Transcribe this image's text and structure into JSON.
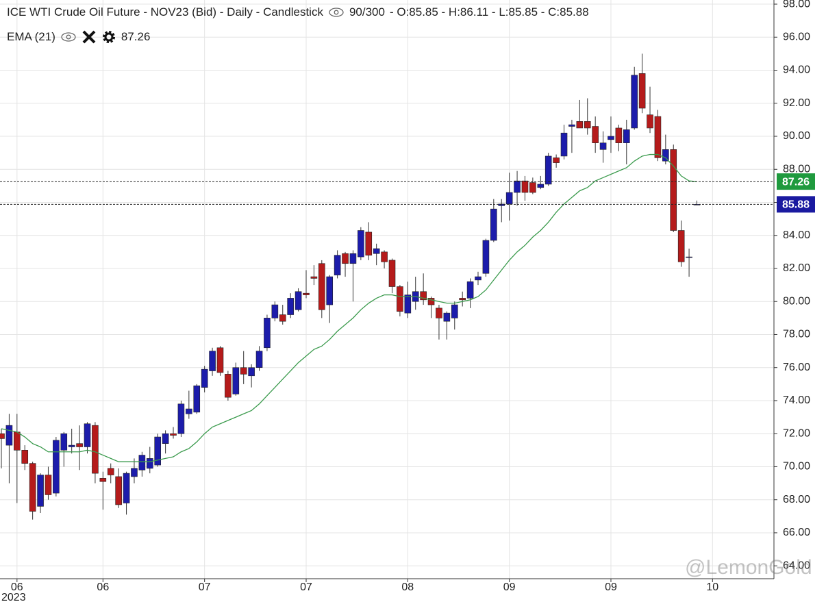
{
  "chart_data": {
    "type": "candlestick",
    "title": "ICE WTI Crude Oil Future - NOV23 (Bid) - Daily - Candlestick",
    "bar_count": "90/300",
    "ohlc_readout": "- O:85.85 - H:86.11 - L:85.85 - C:85.88",
    "year_label": "2023",
    "watermark": "@LemonGold",
    "categories": [
      null,
      null,
      "06",
      null,
      null,
      null,
      null,
      null,
      null,
      null,
      null,
      null,
      null,
      "06",
      null,
      null,
      null,
      null,
      null,
      null,
      null,
      null,
      null,
      null,
      null,
      null,
      "07",
      null,
      null,
      null,
      null,
      null,
      null,
      null,
      null,
      null,
      null,
      null,
      null,
      "07",
      null,
      null,
      null,
      null,
      null,
      null,
      null,
      null,
      null,
      null,
      null,
      null,
      "08",
      null,
      null,
      null,
      null,
      null,
      null,
      null,
      null,
      null,
      null,
      null,
      null,
      "09",
      null,
      null,
      null,
      null,
      null,
      null,
      null,
      null,
      null,
      null,
      null,
      null,
      "09",
      null,
      null,
      null,
      null,
      null,
      null,
      null,
      null,
      null,
      null,
      null,
      null,
      "10"
    ],
    "series": [
      {
        "name": "ICE WTI Crude Oil Future - NOV23 (Bid)",
        "up_color": "#1c1cab",
        "down_color": "#b51b1b",
        "open": [
          72.0,
          71.3,
          72.1,
          71.0,
          70.2,
          67.6,
          69.5,
          68.4,
          71.0,
          71.2,
          71.4,
          71.2,
          72.5,
          69.3,
          69.9,
          69.4,
          67.8,
          69.4,
          69.8,
          69.9,
          70.1,
          71.4,
          72.0,
          72.0,
          73.2,
          73.3,
          74.8,
          75.8,
          77.2,
          75.6,
          74.4,
          76.0,
          75.5,
          76.0,
          77.2,
          79.0,
          79.2,
          79.2,
          79.5,
          80.5,
          81.5,
          82.3,
          79.8,
          81.6,
          82.9,
          82.3,
          82.7,
          84.2,
          82.9,
          83.0,
          82.5,
          80.9,
          79.3,
          80.0,
          80.6,
          80.2,
          79.6,
          78.8,
          79.0,
          80.2,
          80.2,
          81.3,
          81.7,
          83.7,
          85.8,
          85.9,
          86.6,
          87.3,
          87.2,
          86.9,
          87.1,
          88.7,
          88.8,
          90.6,
          90.9,
          90.9,
          90.6,
          89.2,
          89.8,
          90.5,
          89.6,
          90.5,
          93.8,
          91.3,
          91.2,
          88.5,
          89.2,
          84.3,
          82.7,
          85.85,
          null,
          null
        ],
        "high": [
          72.3,
          73.2,
          73.2,
          71.3,
          70.3,
          69.6,
          70.0,
          71.8,
          72.1,
          72.3,
          72.5,
          72.7,
          72.7,
          69.7,
          70.2,
          69.9,
          69.7,
          70.5,
          70.9,
          71.2,
          72.0,
          72.2,
          72.4,
          74.0,
          74.6,
          75.0,
          76.1,
          77.2,
          77.3,
          75.8,
          76.3,
          77.0,
          76.2,
          77.3,
          79.2,
          80.0,
          79.8,
          80.5,
          80.8,
          81.9,
          82.2,
          82.5,
          81.6,
          83.1,
          83.0,
          83.1,
          84.5,
          84.8,
          83.5,
          83.1,
          82.6,
          81.0,
          81.2,
          81.5,
          81.7,
          80.3,
          79.8,
          79.4,
          80.0,
          80.6,
          81.4,
          81.8,
          83.8,
          86.2,
          86.2,
          87.8,
          87.9,
          87.6,
          87.5,
          87.6,
          89.0,
          88.9,
          90.7,
          91.0,
          92.2,
          92.3,
          91.2,
          90.3,
          91.2,
          90.7,
          91.0,
          94.2,
          95.0,
          93.0,
          91.6,
          90.1,
          89.5,
          84.9,
          83.2,
          86.11,
          null,
          null
        ],
        "low": [
          69.9,
          69.0,
          67.8,
          69.8,
          66.8,
          67.2,
          68.0,
          68.2,
          70.0,
          70.8,
          69.8,
          70.8,
          69.0,
          67.4,
          69.0,
          67.5,
          67.1,
          69.0,
          69.4,
          69.6,
          70.0,
          70.8,
          71.7,
          71.8,
          72.9,
          73.2,
          74.5,
          75.5,
          75.5,
          74.0,
          74.3,
          75.0,
          74.8,
          75.8,
          77.0,
          78.8,
          78.6,
          79.0,
          79.4,
          80.2,
          81.0,
          79.0,
          78.7,
          81.4,
          81.5,
          80.0,
          82.5,
          82.5,
          82.2,
          82.0,
          80.5,
          79.1,
          79.0,
          79.5,
          79.8,
          79.0,
          77.7,
          77.7,
          78.3,
          79.7,
          79.6,
          81.0,
          81.5,
          83.6,
          84.8,
          84.9,
          85.8,
          86.1,
          86.5,
          86.8,
          87.0,
          88.1,
          88.6,
          89.0,
          90.5,
          90.1,
          89.0,
          88.4,
          89.0,
          89.1,
          88.3,
          90.4,
          91.4,
          90.2,
          88.5,
          88.3,
          84.2,
          82.1,
          81.5,
          85.85,
          null,
          null
        ],
        "close": [
          71.7,
          72.5,
          71.0,
          70.2,
          67.3,
          69.5,
          68.3,
          71.6,
          72.0,
          71.3,
          71.2,
          72.6,
          69.6,
          69.1,
          69.5,
          67.7,
          69.6,
          69.9,
          70.7,
          70.5,
          71.8,
          72.0,
          71.9,
          73.8,
          73.5,
          74.9,
          75.9,
          77.0,
          75.7,
          74.2,
          76.0,
          75.6,
          76.0,
          77.0,
          79.0,
          79.8,
          78.8,
          80.2,
          80.6,
          80.4,
          81.4,
          79.5,
          81.5,
          82.8,
          82.3,
          82.9,
          84.3,
          82.8,
          83.2,
          82.4,
          80.9,
          79.4,
          80.4,
          80.6,
          80.1,
          79.8,
          79.0,
          79.3,
          79.8,
          80.1,
          81.2,
          81.5,
          83.7,
          85.6,
          85.9,
          86.6,
          87.3,
          86.6,
          86.6,
          87.1,
          88.8,
          88.4,
          90.2,
          90.7,
          90.5,
          90.5,
          89.6,
          89.6,
          90.0,
          89.6,
          90.4,
          93.7,
          91.7,
          90.5,
          88.7,
          89.2,
          84.3,
          82.4,
          82.7,
          85.88,
          null,
          null
        ]
      },
      {
        "name": "EMA (21)",
        "type": "line",
        "color": "#3a9a4c",
        "values": [
          72.3,
          72.2,
          72.1,
          71.8,
          71.4,
          71.2,
          70.9,
          70.9,
          70.9,
          70.9,
          70.9,
          71.0,
          70.9,
          70.7,
          70.5,
          70.3,
          70.3,
          70.3,
          70.3,
          70.3,
          70.4,
          70.5,
          70.6,
          70.9,
          71.1,
          71.5,
          72.0,
          72.4,
          72.6,
          72.8,
          73.0,
          73.2,
          73.4,
          73.8,
          74.3,
          74.8,
          75.3,
          75.8,
          76.3,
          76.7,
          77.1,
          77.3,
          77.7,
          78.2,
          78.6,
          79.0,
          79.5,
          79.9,
          80.2,
          80.4,
          80.4,
          80.3,
          80.3,
          80.3,
          80.2,
          80.1,
          80.0,
          79.9,
          79.9,
          80.0,
          80.1,
          80.3,
          80.7,
          81.3,
          81.9,
          82.5,
          83.0,
          83.4,
          83.9,
          84.3,
          84.8,
          85.4,
          85.9,
          86.3,
          86.7,
          86.9,
          87.3,
          87.5,
          87.7,
          87.9,
          88.1,
          88.5,
          88.8,
          88.9,
          88.9,
          88.7,
          88.2,
          87.6,
          87.3,
          87.26,
          null,
          null
        ]
      }
    ],
    "markers": [
      {
        "value": 87.26,
        "label": "87.26",
        "color": "#1f9a3e"
      },
      {
        "value": 85.88,
        "label": "85.88",
        "color": "#1a1aa0"
      }
    ],
    "ylim": [
      63.22,
      98.25
    ],
    "yticks": [
      {
        "value": 64,
        "label": "64.00"
      },
      {
        "value": 66,
        "label": "66.00"
      },
      {
        "value": 68,
        "label": "68.00"
      },
      {
        "value": 70,
        "label": "70.00"
      },
      {
        "value": 72,
        "label": "72.00"
      },
      {
        "value": 74,
        "label": "74.00"
      },
      {
        "value": 76,
        "label": "76.00"
      },
      {
        "value": 78,
        "label": "78.00"
      },
      {
        "value": 80,
        "label": "80.00"
      },
      {
        "value": 82,
        "label": "82.00"
      },
      {
        "value": 84,
        "label": "84.00"
      },
      {
        "value": 86,
        "label": "86.00"
      },
      {
        "value": 88,
        "label": "88.00"
      },
      {
        "value": 90,
        "label": "90.00"
      },
      {
        "value": 92,
        "label": "92.00"
      },
      {
        "value": 94,
        "label": "94.00"
      },
      {
        "value": 96,
        "label": "96.00"
      },
      {
        "value": 98,
        "label": "98.00"
      }
    ],
    "grid": true
  }
}
